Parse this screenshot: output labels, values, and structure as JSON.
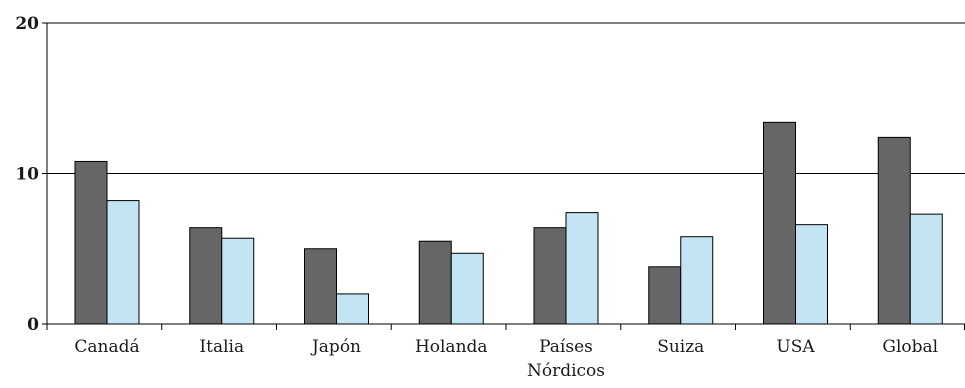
{
  "chart_data": {
    "type": "bar",
    "title": "",
    "xlabel": "",
    "ylabel": "",
    "ylim": [
      0,
      20
    ],
    "yticks": [
      0,
      10,
      20
    ],
    "grid": true,
    "legend": "none",
    "categories": [
      [
        "Canadá"
      ],
      [
        "Italia"
      ],
      [
        "Japón"
      ],
      [
        "Holanda"
      ],
      [
        "Países",
        "Nórdicos"
      ],
      [
        "Suiza"
      ],
      [
        "USA"
      ],
      [
        "Global"
      ]
    ],
    "series": [
      {
        "color": "#666666",
        "values": [
          10.8,
          6.4,
          5.0,
          5.5,
          6.4,
          3.8,
          13.4,
          12.4
        ]
      },
      {
        "color": "#c2e4f3",
        "values": [
          8.2,
          5.7,
          2.0,
          4.7,
          7.4,
          5.8,
          6.6,
          7.3
        ]
      }
    ]
  }
}
